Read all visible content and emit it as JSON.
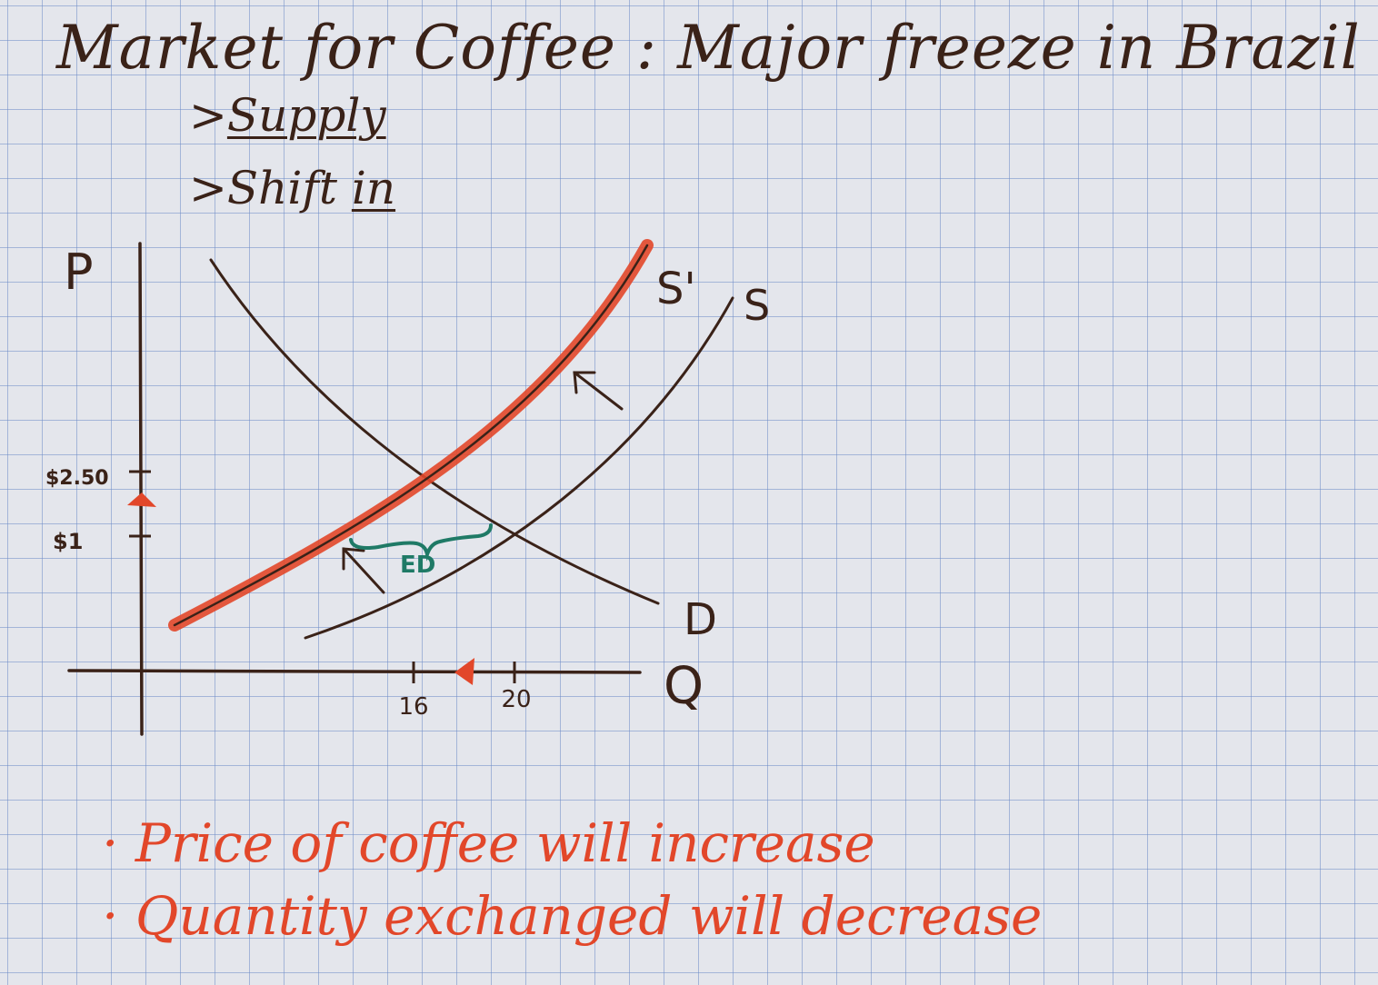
{
  "title": "Market for Coffee : Major freeze in Brazil",
  "notes": {
    "line1_prefix": ">",
    "line1_word": "Supply",
    "line2_prefix": ">",
    "line2_text": "Shift ",
    "line2_emph": "in"
  },
  "axes": {
    "y_label": "P",
    "x_label": "Q",
    "y_ticks": [
      "$2.50",
      "$1"
    ],
    "x_ticks": [
      "16",
      "20"
    ]
  },
  "curves": {
    "demand": "D",
    "supply": "S",
    "new_supply": "S'"
  },
  "excess_demand_label": "ED",
  "conclusions": [
    "Price of coffee will increase",
    "Quantity exchanged will decrease"
  ],
  "colors": {
    "ink": "#3a2218",
    "highlight": "#e2472a",
    "ed_green": "#1f7a66",
    "grid": "#6e8cc8"
  }
}
